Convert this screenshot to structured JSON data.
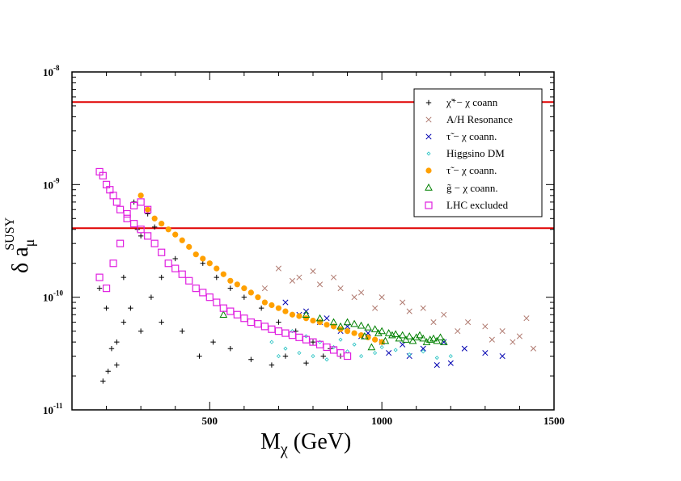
{
  "chart_data": {
    "type": "scatter",
    "xlabel": "M",
    "xlabel_sub": "χ",
    "xlabel_units": " (GeV)",
    "ylabel": "δ a",
    "ylabel_sub": "μ",
    "ylabel_sup": "SUSY",
    "xlim": [
      100,
      1500
    ],
    "ylim": [
      1e-11,
      1e-08
    ],
    "y_scale": "log",
    "x_ticks": [
      {
        "v": 500,
        "label": "500"
      },
      {
        "v": 1000,
        "label": "1000"
      },
      {
        "v": 1500,
        "label": "1500"
      }
    ],
    "y_ticks": [
      {
        "v": 1e-11,
        "base": "10",
        "exp": "-11"
      },
      {
        "v": 1e-10,
        "base": "10",
        "exp": "-10"
      },
      {
        "v": 1e-09,
        "base": "10",
        "exp": "-9"
      },
      {
        "v": 1e-08,
        "base": "10",
        "exp": "-8"
      }
    ],
    "hlines": [
      {
        "y": 5.4e-09,
        "color": "#e00000"
      },
      {
        "y": 4.1e-10,
        "color": "#e00000"
      }
    ],
    "legend_position": "top-right",
    "series": [
      {
        "name": "χ̃⁺− χ  coann",
        "marker": "plus",
        "color": "#000000",
        "points": [
          [
            190,
            1.8e-11
          ],
          [
            205,
            2.2e-11
          ],
          [
            215,
            3.5e-11
          ],
          [
            230,
            2.5e-11
          ],
          [
            250,
            6e-11
          ],
          [
            270,
            8e-11
          ],
          [
            300,
            5e-11
          ],
          [
            330,
            1e-10
          ],
          [
            360,
            1.5e-10
          ],
          [
            400,
            2.2e-10
          ],
          [
            440,
            2.8e-10
          ],
          [
            480,
            2e-10
          ],
          [
            520,
            1.5e-10
          ],
          [
            560,
            1.2e-10
          ],
          [
            600,
            1e-10
          ],
          [
            650,
            8e-11
          ],
          [
            700,
            6e-11
          ],
          [
            750,
            5e-11
          ],
          [
            800,
            4e-11
          ],
          [
            850,
            3.5e-11
          ],
          [
            880,
            3e-11
          ],
          [
            300,
            3.5e-10
          ],
          [
            340,
            4.2e-10
          ],
          [
            290,
            4e-10
          ],
          [
            320,
            5.5e-10
          ],
          [
            280,
            7e-10
          ],
          [
            250,
            1.5e-10
          ],
          [
            200,
            8e-11
          ],
          [
            230,
            4e-11
          ],
          [
            180,
            1.2e-10
          ],
          [
            360,
            6e-11
          ],
          [
            420,
            5e-11
          ],
          [
            470,
            3e-11
          ],
          [
            510,
            4e-11
          ],
          [
            560,
            3.5e-11
          ],
          [
            620,
            2.8e-11
          ],
          [
            680,
            2.5e-11
          ],
          [
            720,
            3e-11
          ],
          [
            780,
            2.6e-11
          ],
          [
            830,
            3e-11
          ]
        ]
      },
      {
        "name": "A/H Resonance",
        "marker": "cross",
        "color": "#b07a70",
        "points": [
          [
            700,
            1.8e-10
          ],
          [
            760,
            1.5e-10
          ],
          [
            820,
            1.3e-10
          ],
          [
            880,
            1.2e-10
          ],
          [
            940,
            1.1e-10
          ],
          [
            1000,
            1e-10
          ],
          [
            1060,
            9e-11
          ],
          [
            1120,
            8e-11
          ],
          [
            1180,
            7e-11
          ],
          [
            1250,
            6e-11
          ],
          [
            1300,
            5.5e-11
          ],
          [
            1350,
            5e-11
          ],
          [
            1400,
            4.5e-11
          ],
          [
            1440,
            3.5e-11
          ],
          [
            1420,
            6.5e-11
          ],
          [
            1380,
            4e-11
          ],
          [
            1320,
            4.2e-11
          ],
          [
            1220,
            5e-11
          ],
          [
            1150,
            6e-11
          ],
          [
            1080,
            7.5e-11
          ],
          [
            980,
            8e-11
          ],
          [
            920,
            1e-10
          ],
          [
            860,
            1.5e-10
          ],
          [
            800,
            1.7e-10
          ],
          [
            740,
            1.4e-10
          ],
          [
            660,
            1.2e-10
          ]
        ]
      },
      {
        "name": "τ̃ − χ  coann.",
        "marker": "cross",
        "color": "#0000b0",
        "points": [
          [
            760,
            7e-11
          ],
          [
            820,
            6e-11
          ],
          [
            880,
            5e-11
          ],
          [
            940,
            4.5e-11
          ],
          [
            1000,
            4e-11
          ],
          [
            1060,
            3.8e-11
          ],
          [
            1120,
            3.5e-11
          ],
          [
            1180,
            4e-11
          ],
          [
            1240,
            3.5e-11
          ],
          [
            1300,
            3.2e-11
          ],
          [
            1350,
            3e-11
          ],
          [
            1160,
            2.5e-11
          ],
          [
            1200,
            2.6e-11
          ],
          [
            1080,
            3e-11
          ],
          [
            1020,
            3.2e-11
          ],
          [
            960,
            4.8e-11
          ],
          [
            900,
            5.5e-11
          ],
          [
            840,
            6.5e-11
          ],
          [
            780,
            7.5e-11
          ],
          [
            720,
            9e-11
          ]
        ]
      },
      {
        "name": "Higgsino DM",
        "marker": "diamond",
        "color": "#20c0c0",
        "points": [
          [
            680,
            4e-11
          ],
          [
            700,
            3e-11
          ],
          [
            720,
            3.5e-11
          ],
          [
            740,
            5e-11
          ],
          [
            760,
            3.2e-11
          ],
          [
            780,
            4.5e-11
          ],
          [
            800,
            3e-11
          ],
          [
            820,
            4e-11
          ],
          [
            840,
            2.8e-11
          ],
          [
            860,
            3.6e-11
          ],
          [
            880,
            4.2e-11
          ],
          [
            900,
            3.3e-11
          ],
          [
            920,
            3.8e-11
          ],
          [
            940,
            3e-11
          ],
          [
            960,
            4.5e-11
          ],
          [
            980,
            3.2e-11
          ],
          [
            1000,
            3.6e-11
          ],
          [
            1040,
            3.4e-11
          ],
          [
            1080,
            3.1e-11
          ],
          [
            1120,
            3.3e-11
          ],
          [
            1160,
            2.9e-11
          ],
          [
            1200,
            3e-11
          ]
        ]
      },
      {
        "name": "τ̃ − χ  coann.",
        "marker": "circle",
        "color": "#ffa000",
        "points": [
          [
            300,
            8e-10
          ],
          [
            320,
            6e-10
          ],
          [
            340,
            5e-10
          ],
          [
            360,
            4.5e-10
          ],
          [
            380,
            4e-10
          ],
          [
            400,
            3.6e-10
          ],
          [
            420,
            3.2e-10
          ],
          [
            440,
            2.8e-10
          ],
          [
            460,
            2.4e-10
          ],
          [
            480,
            2.2e-10
          ],
          [
            500,
            2e-10
          ],
          [
            520,
            1.8e-10
          ],
          [
            540,
            1.6e-10
          ],
          [
            560,
            1.4e-10
          ],
          [
            580,
            1.3e-10
          ],
          [
            600,
            1.2e-10
          ],
          [
            620,
            1.1e-10
          ],
          [
            640,
            1e-10
          ],
          [
            660,
            9e-11
          ],
          [
            680,
            8.5e-11
          ],
          [
            700,
            8e-11
          ],
          [
            720,
            7.5e-11
          ],
          [
            740,
            7e-11
          ],
          [
            760,
            6.8e-11
          ],
          [
            780,
            6.5e-11
          ],
          [
            800,
            6.2e-11
          ],
          [
            820,
            6e-11
          ],
          [
            840,
            5.7e-11
          ],
          [
            860,
            5.5e-11
          ],
          [
            880,
            5.2e-11
          ],
          [
            900,
            5e-11
          ],
          [
            920,
            4.8e-11
          ],
          [
            940,
            4.6e-11
          ],
          [
            960,
            4.4e-11
          ],
          [
            980,
            4.2e-11
          ],
          [
            1000,
            4e-11
          ]
        ]
      },
      {
        "name": "g̃ − χ  coann.",
        "marker": "triangle",
        "color": "#008000",
        "points": [
          [
            900,
            6e-11
          ],
          [
            920,
            5.8e-11
          ],
          [
            940,
            5.6e-11
          ],
          [
            960,
            5.4e-11
          ],
          [
            980,
            5.2e-11
          ],
          [
            1000,
            5e-11
          ],
          [
            1020,
            4.8e-11
          ],
          [
            1040,
            4.7e-11
          ],
          [
            1060,
            4.6e-11
          ],
          [
            1080,
            4.5e-11
          ],
          [
            1100,
            4.4e-11
          ],
          [
            1120,
            4.3e-11
          ],
          [
            1140,
            4.2e-11
          ],
          [
            1160,
            4.1e-11
          ],
          [
            1180,
            4e-11
          ],
          [
            950,
            4.5e-11
          ],
          [
            970,
            3.6e-11
          ],
          [
            990,
            4.8e-11
          ],
          [
            1010,
            4.1e-11
          ],
          [
            1030,
            4.6e-11
          ],
          [
            1050,
            4.3e-11
          ],
          [
            1070,
            4.2e-11
          ],
          [
            1090,
            4.1e-11
          ],
          [
            1110,
            4.6e-11
          ],
          [
            1130,
            4e-11
          ],
          [
            1150,
            4.3e-11
          ],
          [
            1170,
            4.4e-11
          ],
          [
            880,
            5.5e-11
          ],
          [
            860,
            6e-11
          ],
          [
            820,
            6.5e-11
          ],
          [
            780,
            7e-11
          ],
          [
            540,
            7e-11
          ]
        ]
      },
      {
        "name": "LHC excluded",
        "marker": "square",
        "color": "#e020e0",
        "points": [
          [
            180,
            1.3e-09
          ],
          [
            190,
            1.2e-09
          ],
          [
            200,
            1e-09
          ],
          [
            210,
            9e-10
          ],
          [
            220,
            8e-10
          ],
          [
            230,
            7e-10
          ],
          [
            240,
            6e-10
          ],
          [
            260,
            5e-10
          ],
          [
            280,
            4.5e-10
          ],
          [
            300,
            4e-10
          ],
          [
            320,
            3.5e-10
          ],
          [
            340,
            3e-10
          ],
          [
            360,
            2.5e-10
          ],
          [
            380,
            2e-10
          ],
          [
            400,
            1.8e-10
          ],
          [
            420,
            1.6e-10
          ],
          [
            440,
            1.4e-10
          ],
          [
            460,
            1.2e-10
          ],
          [
            480,
            1.1e-10
          ],
          [
            500,
            1e-10
          ],
          [
            520,
            9e-11
          ],
          [
            540,
            8e-11
          ],
          [
            560,
            7.5e-11
          ],
          [
            580,
            7e-11
          ],
          [
            600,
            6.5e-11
          ],
          [
            620,
            6e-11
          ],
          [
            640,
            5.8e-11
          ],
          [
            660,
            5.5e-11
          ],
          [
            680,
            5.2e-11
          ],
          [
            700,
            5e-11
          ],
          [
            720,
            4.8e-11
          ],
          [
            740,
            4.6e-11
          ],
          [
            760,
            4.4e-11
          ],
          [
            780,
            4.2e-11
          ],
          [
            800,
            4e-11
          ],
          [
            820,
            3.8e-11
          ],
          [
            840,
            3.6e-11
          ],
          [
            860,
            3.4e-11
          ],
          [
            880,
            3.2e-11
          ],
          [
            900,
            3e-11
          ],
          [
            180,
            1.5e-10
          ],
          [
            200,
            1.2e-10
          ],
          [
            220,
            2e-10
          ],
          [
            240,
            3e-10
          ],
          [
            260,
            5.5e-10
          ],
          [
            280,
            6.5e-10
          ],
          [
            300,
            7e-10
          ],
          [
            320,
            6e-10
          ]
        ]
      }
    ]
  },
  "legend_labels": [
    "χ̃⁺− χ  coann",
    "A/H Resonance",
    "τ̃ − χ  coann.",
    "Higgsino DM",
    "τ̃ − χ  coann.",
    "g̃ − χ  coann.",
    "LHC excluded"
  ]
}
